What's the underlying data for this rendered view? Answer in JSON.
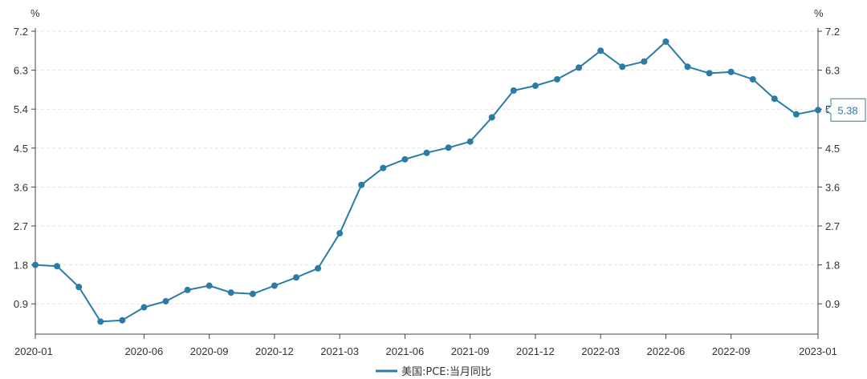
{
  "chart_data": {
    "type": "line",
    "y_unit_left": "%",
    "y_unit_right": "%",
    "ylim": [
      0.2,
      7.2
    ],
    "yticks": [
      0.9,
      1.8,
      2.7,
      3.6,
      4.5,
      5.4,
      6.3,
      7.2
    ],
    "ytick_labels": [
      "0.9",
      "1.8",
      "2.7",
      "3.6",
      "4.5",
      "5.4",
      "6.3",
      "7.2"
    ],
    "xtick_labels": [
      {
        "index": 0,
        "label": "2020-01"
      },
      {
        "index": 5,
        "label": "2020-06"
      },
      {
        "index": 8,
        "label": "2020-09"
      },
      {
        "index": 11,
        "label": "2020-12"
      },
      {
        "index": 14,
        "label": "2021-03"
      },
      {
        "index": 17,
        "label": "2021-06"
      },
      {
        "index": 20,
        "label": "2021-09"
      },
      {
        "index": 23,
        "label": "2021-12"
      },
      {
        "index": 26,
        "label": "2022-03"
      },
      {
        "index": 29,
        "label": "2022-06"
      },
      {
        "index": 32,
        "label": "2022-09"
      },
      {
        "index": 36,
        "label": "2023-01"
      }
    ],
    "grid": true,
    "legend_position": "bottom-center",
    "series": [
      {
        "name": "美国:PCE:当月同比",
        "color": "#2a7ca5",
        "x": [
          "2020-01",
          "2020-02",
          "2020-03",
          "2020-04",
          "2020-05",
          "2020-06",
          "2020-07",
          "2020-08",
          "2020-09",
          "2020-10",
          "2020-11",
          "2020-12",
          "2021-01",
          "2021-02",
          "2021-03",
          "2021-04",
          "2021-05",
          "2021-06",
          "2021-07",
          "2021-08",
          "2021-09",
          "2021-10",
          "2021-11",
          "2021-12",
          "2022-01",
          "2022-02",
          "2022-03",
          "2022-04",
          "2022-05",
          "2022-06",
          "2022-07",
          "2022-08",
          "2022-09",
          "2022-10",
          "2022-11",
          "2022-12",
          "2023-01"
        ],
        "values": [
          1.8,
          1.77,
          1.29,
          0.49,
          0.52,
          0.82,
          0.96,
          1.22,
          1.32,
          1.16,
          1.13,
          1.32,
          1.51,
          1.72,
          2.53,
          3.65,
          4.04,
          4.24,
          4.39,
          4.51,
          4.65,
          5.21,
          5.83,
          5.94,
          6.09,
          6.36,
          6.75,
          6.38,
          6.5,
          6.96,
          6.38,
          6.23,
          6.26,
          6.09,
          5.64,
          5.28,
          5.38
        ]
      }
    ],
    "callout": {
      "label": "5.38",
      "index": 36
    }
  }
}
